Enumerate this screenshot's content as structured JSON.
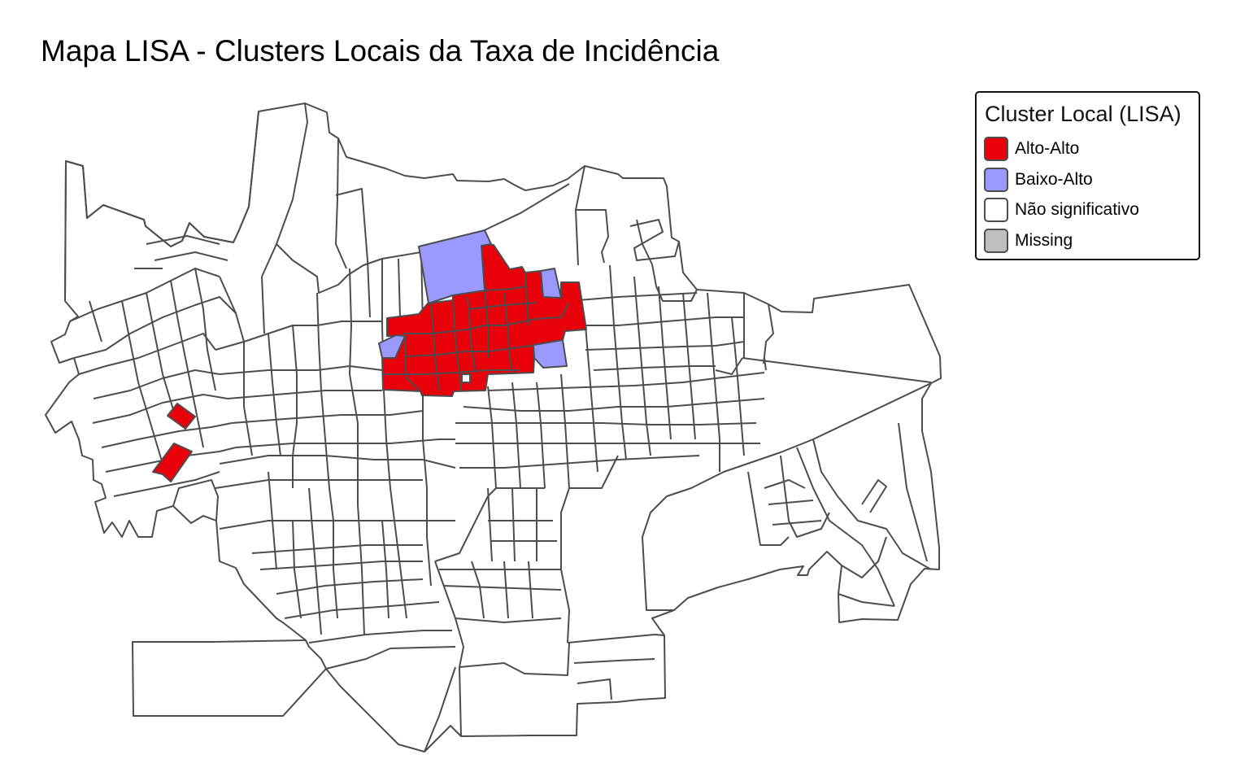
{
  "map": {
    "title": "Mapa LISA - Clusters Locais da Taxa de Incidência",
    "colors": {
      "high_high": "#e8000b",
      "low_high": "#9999ff",
      "not_significant": "#ffffff",
      "missing": "#bebebe",
      "boundary_stroke": "#4d4d4d"
    }
  },
  "legend": {
    "title": "Cluster Local (LISA)",
    "items": [
      {
        "label": "Alto-Alto",
        "color": "#e8000b"
      },
      {
        "label": "Baixo-Alto",
        "color": "#9999ff"
      },
      {
        "label": "Não significativo",
        "color": "#ffffff"
      },
      {
        "label": "Missing",
        "color": "#bebebe"
      }
    ]
  }
}
